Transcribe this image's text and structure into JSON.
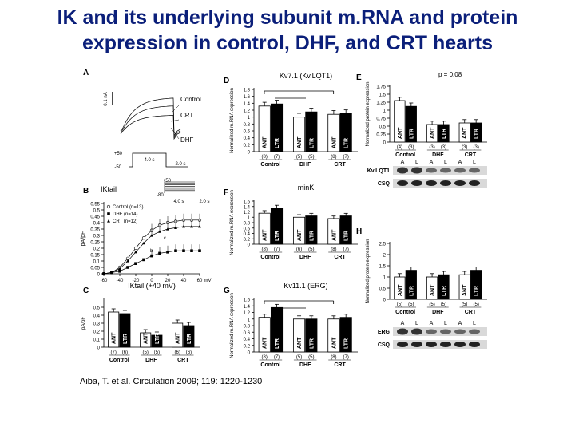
{
  "title": {
    "line1": "IK and its underlying subunit m.RNA and protein",
    "line2": "expression in control, DHF, and CRT hearts"
  },
  "citation": "Aiba, T. et al. Circulation 2009; 119: 1220-1230",
  "colors": {
    "title": "#0b1f7a",
    "bar_ant": "#ffffff",
    "bar_ltr": "#000000"
  },
  "panels": {
    "A": {
      "letter": "A",
      "scale_label": "0.1 nA",
      "trace_labels": [
        "Control",
        "CRT",
        "DHF"
      ],
      "protocol": {
        "v_top": "+50",
        "v_bottom": "-50",
        "dur1": "4.0 s",
        "dur2": "2.0 s"
      }
    },
    "B": {
      "letter": "B",
      "ik_label": "IKtail",
      "protocol": {
        "v_top": "+50",
        "v_bottom": "-80",
        "dur1": "4.0 s",
        "dur2": "2.0 s"
      },
      "ylabel": "pA/pF",
      "x_unit": "mV",
      "legend": [
        "Control (n=13)",
        "DHF (n=14)",
        "CRT (n=12)"
      ],
      "x_ticks": [
        "-60",
        "-40",
        "-20",
        "0",
        "20",
        "40",
        "60"
      ],
      "y_ticks": [
        "0",
        "0.05",
        "0.1",
        "0.15",
        "0.2",
        "0.25",
        "0.3",
        "0.35",
        "0.4",
        "0.45",
        "0.5",
        "0.55"
      ],
      "annotations": [
        "a",
        "b",
        "c"
      ],
      "chart_data": {
        "type": "line",
        "x": [
          -60,
          -50,
          -40,
          -30,
          -20,
          -10,
          0,
          10,
          20,
          30,
          40,
          50,
          60
        ],
        "ylim": [
          0,
          0.55
        ],
        "series": [
          {
            "name": "Control (n=13)",
            "values": [
              0.0,
              0.01,
              0.05,
              0.12,
              0.2,
              0.28,
              0.34,
              0.38,
              0.4,
              0.41,
              0.42,
              0.42,
              0.42
            ]
          },
          {
            "name": "DHF (n=14)",
            "values": [
              0.0,
              0.01,
              0.02,
              0.05,
              0.08,
              0.11,
              0.14,
              0.16,
              0.17,
              0.18,
              0.18,
              0.18,
              0.18
            ]
          },
          {
            "name": "CRT (n=12)",
            "values": [
              0.0,
              0.01,
              0.04,
              0.1,
              0.17,
              0.24,
              0.3,
              0.33,
              0.35,
              0.36,
              0.37,
              0.37,
              0.37
            ]
          }
        ]
      }
    },
    "C": {
      "letter": "C",
      "title": "IKtail (+40 mV)",
      "ylabel": "pA/pF",
      "y_ticks": [
        "0",
        "0.1",
        "0.2",
        "0.3",
        "0.4",
        "0.5"
      ],
      "groups": [
        "Control",
        "DHF",
        "CRT"
      ],
      "bar_labels": [
        "ANT",
        "LTR"
      ],
      "n_labels": [
        "(7)",
        "(6)",
        "(5)",
        "(5)",
        "(6)",
        "(6)"
      ],
      "chart_data": {
        "type": "bar",
        "categories": [
          "Control ANT",
          "Control LTR",
          "DHF ANT",
          "DHF LTR",
          "CRT ANT",
          "CRT LTR"
        ],
        "values": [
          0.44,
          0.42,
          0.18,
          0.15,
          0.3,
          0.27
        ],
        "ylim": [
          0,
          0.6
        ]
      }
    },
    "D": {
      "letter": "D",
      "title": "Kv7.1 (Kv.LQT1)",
      "ylabel": "Normalized m.RNA expression",
      "y_ticks": [
        "0",
        "0.2",
        "0.4",
        "0.6",
        "0.8",
        "1",
        "1.2",
        "1.4",
        "1.6",
        "1.8"
      ],
      "groups": [
        "Control",
        "DHF",
        "CRT"
      ],
      "bar_labels": [
        "ANT",
        "LTR"
      ],
      "n_labels": [
        "(8)",
        "(7)",
        "(5)",
        "(5)",
        "(8)",
        "(7)"
      ],
      "chart_data": {
        "type": "bar",
        "categories": [
          "Control ANT",
          "Control LTR",
          "DHF ANT",
          "DHF LTR",
          "CRT ANT",
          "CRT LTR"
        ],
        "values": [
          1.32,
          1.38,
          1.0,
          1.15,
          1.08,
          1.1
        ],
        "ylim": [
          0,
          1.8
        ]
      }
    },
    "E": {
      "letter": "E",
      "annotation": "p = 0.08",
      "ylabel": "Normalized protein expression",
      "y_ticks": [
        "0",
        "0.25",
        "0.5",
        "0.75",
        "1",
        "1.25",
        "1.5",
        "1.75"
      ],
      "groups": [
        "Control",
        "DHF",
        "CRT"
      ],
      "bar_labels": [
        "ANT",
        "LTR"
      ],
      "n_labels": [
        "(4)",
        "(3)",
        "(3)",
        "(3)",
        "(3)",
        "(3)"
      ],
      "blot_lanes": [
        "A",
        "L",
        "A",
        "L",
        "A",
        "L"
      ],
      "blot_rows": [
        "Kv.LQT1",
        "CSQ"
      ],
      "chart_data": {
        "type": "bar",
        "categories": [
          "Control ANT",
          "Control LTR",
          "DHF ANT",
          "DHF LTR",
          "CRT ANT",
          "CRT LTR"
        ],
        "values": [
          1.3,
          1.12,
          0.55,
          0.55,
          0.6,
          0.6
        ],
        "ylim": [
          0,
          1.75
        ]
      }
    },
    "F": {
      "letter": "F",
      "title": "minK",
      "ylabel": "Normalized m.RNA expression",
      "y_ticks": [
        "0",
        "0.2",
        "0.4",
        "0.6",
        "0.8",
        "1",
        "1.2",
        "1.4",
        "1.6"
      ],
      "groups": [
        "Control",
        "DHF",
        "CRT"
      ],
      "bar_labels": [
        "ANT",
        "LTR"
      ],
      "n_labels": [
        "(8)",
        "(7)",
        "(6)",
        "(5)",
        "(8)",
        "(7)"
      ],
      "chart_data": {
        "type": "bar",
        "categories": [
          "Control ANT",
          "Control LTR",
          "DHF ANT",
          "DHF LTR",
          "CRT ANT",
          "CRT LTR"
        ],
        "values": [
          1.15,
          1.35,
          1.0,
          1.05,
          0.95,
          1.05
        ],
        "ylim": [
          0,
          1.6
        ]
      }
    },
    "G": {
      "letter": "G",
      "title": "Kv11.1 (ERG)",
      "ylabel": "Normalized m.RNA expression",
      "y_ticks": [
        "0",
        "0.2",
        "0.4",
        "0.6",
        "0.8",
        "1",
        "1.2",
        "1.4",
        "1.6"
      ],
      "groups": [
        "Control",
        "DHF",
        "CRT"
      ],
      "bar_labels": [
        "ANT",
        "LTR"
      ],
      "n_labels": [
        "(8)",
        "(7)",
        "(5)",
        "(5)",
        "(8)",
        "(7)"
      ],
      "chart_data": {
        "type": "bar",
        "categories": [
          "Control ANT",
          "Control LTR",
          "DHF ANT",
          "DHF LTR",
          "CRT ANT",
          "CRT LTR"
        ],
        "values": [
          1.05,
          1.35,
          1.0,
          1.0,
          1.0,
          1.05
        ],
        "ylim": [
          0,
          1.6
        ]
      }
    },
    "H": {
      "letter": "H",
      "ylabel": "Normalized protein expression",
      "y_ticks": [
        "0",
        "0.5",
        "1",
        "1.5",
        "2",
        "2.5"
      ],
      "groups": [
        "Control",
        "DHF",
        "CRT"
      ],
      "bar_labels": [
        "ANT",
        "LTR"
      ],
      "n_labels": [
        "(5)",
        "(5)",
        "(5)",
        "(5)",
        "(5)",
        "(5)"
      ],
      "blot_lanes": [
        "A",
        "L",
        "A",
        "L",
        "A",
        "L"
      ],
      "blot_rows": [
        "ERG",
        "CSQ"
      ],
      "chart_data": {
        "type": "bar",
        "categories": [
          "Control ANT",
          "Control LTR",
          "DHF ANT",
          "DHF LTR",
          "CRT ANT",
          "CRT LTR"
        ],
        "values": [
          1.0,
          1.3,
          1.0,
          1.1,
          1.1,
          1.3
        ],
        "ylim": [
          0,
          2.5
        ]
      }
    }
  }
}
